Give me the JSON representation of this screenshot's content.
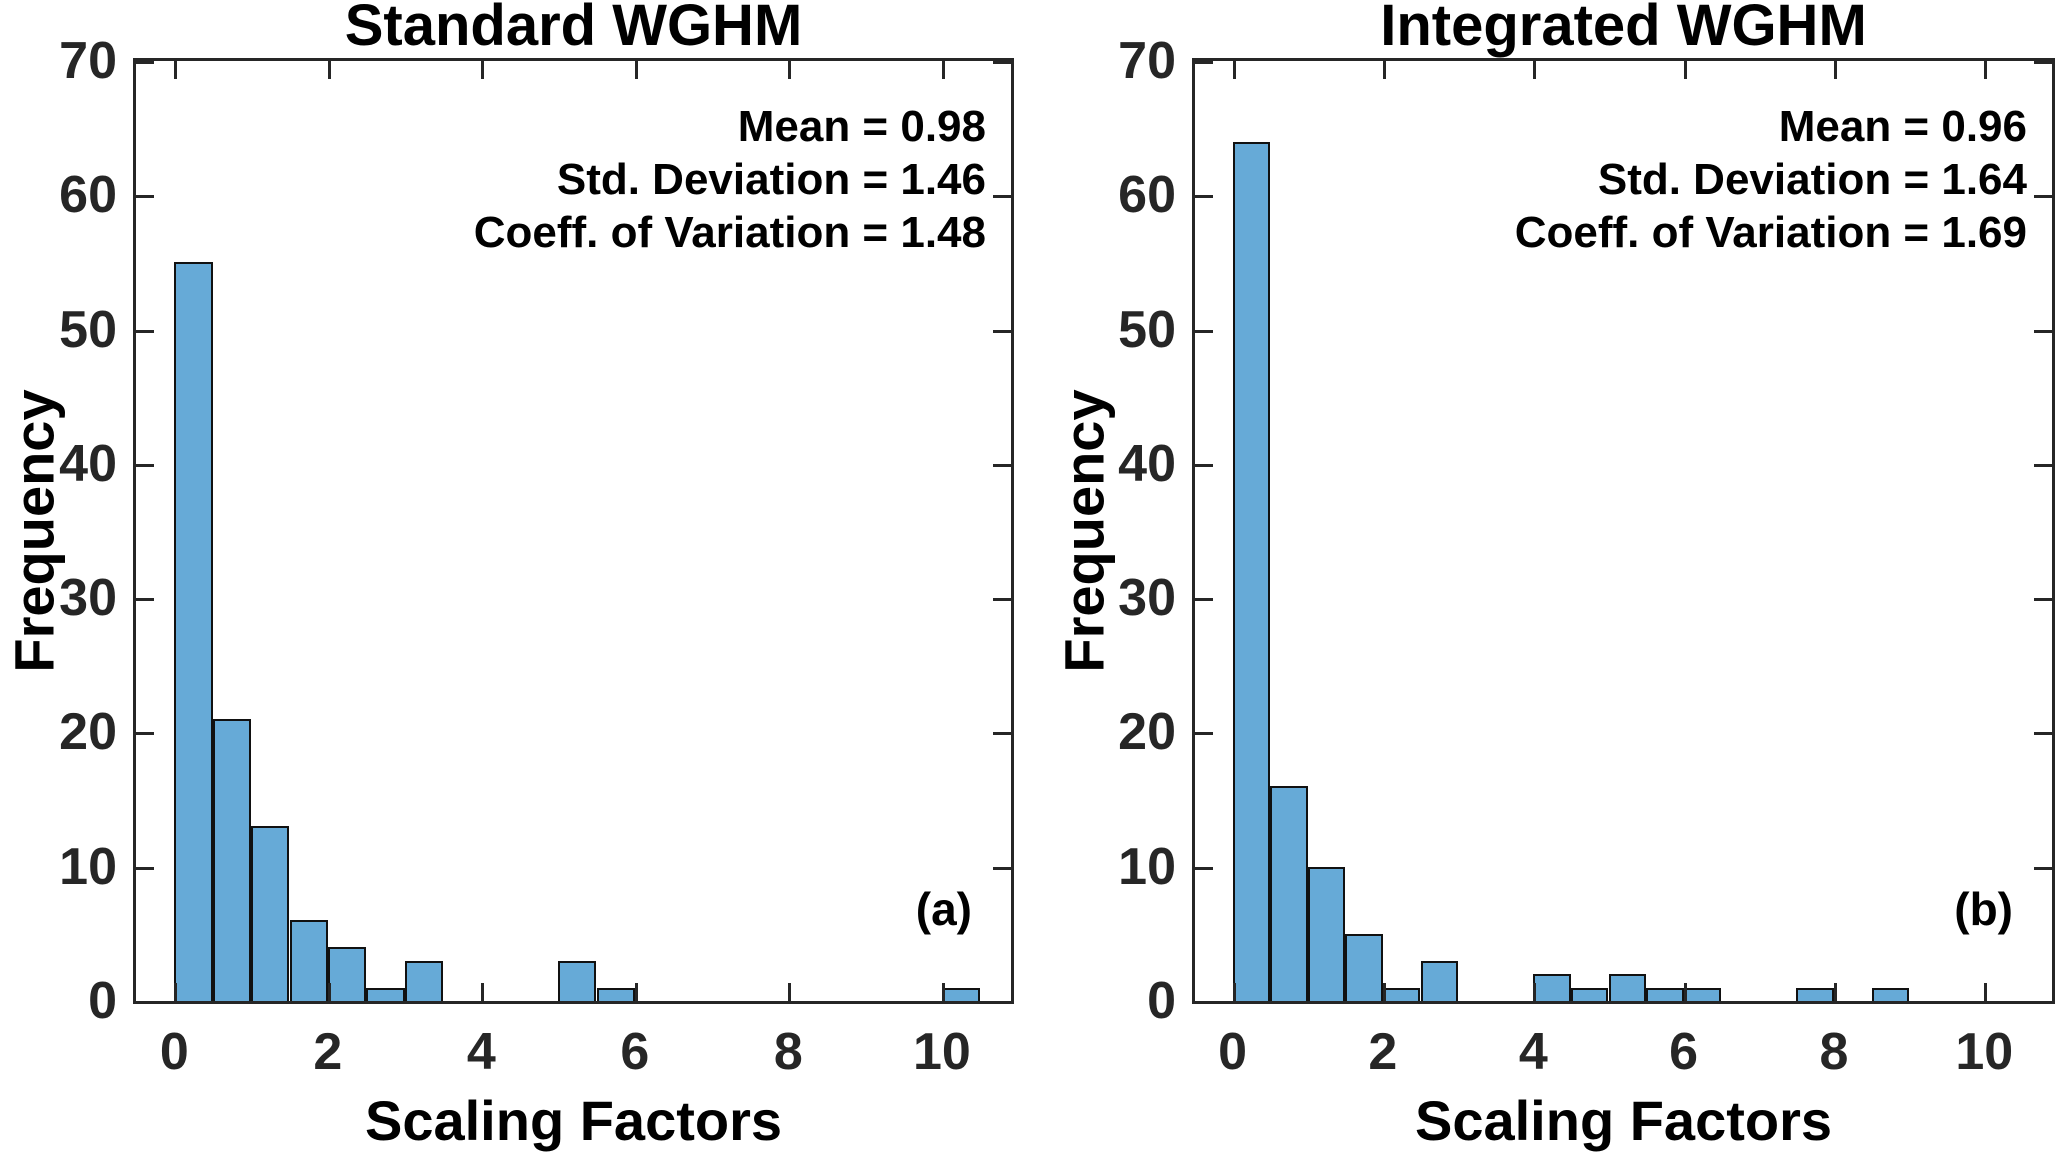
{
  "figure": {
    "background_color": "#ffffff",
    "axis_color": "#262626",
    "text_color": "#000000"
  },
  "chart_data": [
    {
      "type": "bar",
      "subtype": "histogram",
      "title": "Standard WGHM",
      "panel_label": "(a)",
      "xlabel": "Scaling Factors",
      "ylabel": "Frequency",
      "bin_start": 0,
      "bin_width": 0.5,
      "counts": [
        55,
        21,
        13,
        6,
        4,
        1,
        3,
        0,
        0,
        0,
        3,
        1,
        0,
        0,
        0,
        0,
        0,
        0,
        0,
        0,
        1
      ],
      "stats": {
        "lines": [
          "Mean = 0.98",
          "Std. Deviation = 1.46",
          "Coeff. of Variation = 1.48"
        ],
        "mean": 0.98,
        "std_deviation": 1.46,
        "coeff_of_variation": 1.48
      },
      "xticks": [
        0,
        2,
        4,
        6,
        8,
        10
      ],
      "yticks": [
        0,
        10,
        20,
        30,
        40,
        50,
        60,
        70
      ],
      "xlim": [
        -0.5,
        10.9
      ],
      "ylim": [
        0,
        70
      ],
      "grid": false,
      "legend": null,
      "bar_color": "#66AAD7",
      "bar_edge_color": "#111111"
    },
    {
      "type": "bar",
      "subtype": "histogram",
      "title": "Integrated WGHM",
      "panel_label": "(b)",
      "xlabel": "Scaling Factors",
      "ylabel": "Frequency",
      "bin_start": 0,
      "bin_width": 0.5,
      "counts": [
        64,
        16,
        10,
        5,
        1,
        3,
        0,
        0,
        2,
        1,
        2,
        1,
        1,
        0,
        0,
        1,
        0,
        1
      ],
      "stats": {
        "lines": [
          "Mean = 0.96",
          "Std. Deviation = 1.64",
          "Coeff. of Variation = 1.69"
        ],
        "mean": 0.96,
        "std_deviation": 1.64,
        "coeff_of_variation": 1.69
      },
      "xticks": [
        0,
        2,
        4,
        6,
        8,
        10
      ],
      "yticks": [
        0,
        10,
        20,
        30,
        40,
        50,
        60,
        70
      ],
      "xlim": [
        -0.5,
        10.9
      ],
      "ylim": [
        0,
        70
      ],
      "grid": false,
      "legend": null,
      "bar_color": "#66AAD7",
      "bar_edge_color": "#111111"
    }
  ]
}
